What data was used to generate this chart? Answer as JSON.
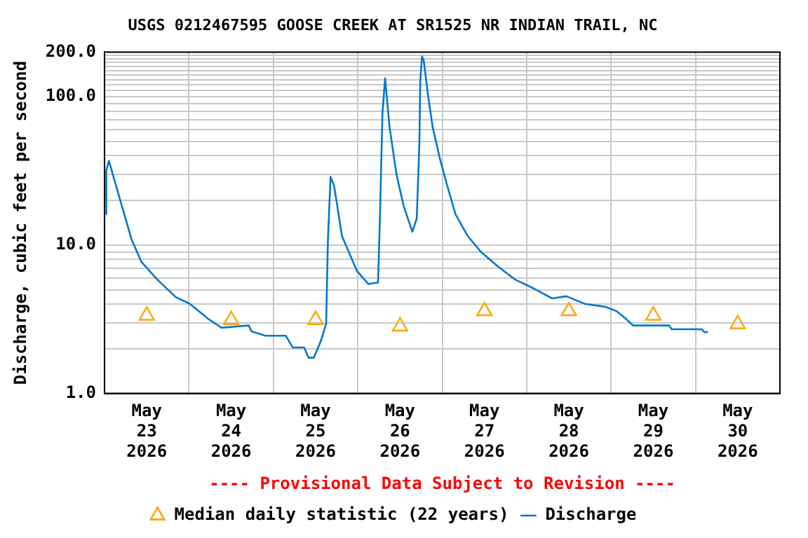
{
  "chart_data": {
    "type": "line",
    "title": "USGS 0212467595 GOOSE CREEK AT SR1525 NR INDIAN TRAIL, NC",
    "ylabel": "Discharge, cubic feet per second",
    "annotations": [
      "---- Provisional Data Subject to Revision ----"
    ],
    "log": true,
    "grid": true,
    "legend": "bottom",
    "xlim": [
      "2026-05-23T00:00",
      "2026-05-31T00:00"
    ],
    "xticks": [
      {
        "value": "2026-05-23T12:00",
        "label": "May\n23\n2026"
      },
      {
        "value": "2026-05-24T00:00",
        "label": null
      },
      {
        "value": "2026-05-24T12:00",
        "label": "May\n24\n2026"
      },
      {
        "value": "2026-05-25T00:00",
        "label": null
      },
      {
        "value": "2026-05-25T12:00",
        "label": "May\n25\n2026"
      },
      {
        "value": "2026-05-26T00:00",
        "label": null
      },
      {
        "value": "2026-05-26T12:00",
        "label": "May\n26\n2026"
      },
      {
        "value": "2026-05-27T00:00",
        "label": null
      },
      {
        "value": "2026-05-27T12:00",
        "label": "May\n27\n2026"
      },
      {
        "value": "2026-05-28T00:00",
        "label": null
      },
      {
        "value": "2026-05-28T12:00",
        "label": "May\n28\n2026"
      },
      {
        "value": "2026-05-29T00:00",
        "label": null
      },
      {
        "value": "2026-05-29T12:00",
        "label": "May\n29\n2026"
      },
      {
        "value": "2026-05-30T00:00",
        "label": null
      },
      {
        "value": "2026-05-30T12:00",
        "label": "May\n30\n2026"
      }
    ],
    "ylim": [
      1,
      200
    ],
    "yticks": [
      {
        "value": 1,
        "label": "1.0"
      },
      {
        "value": 2,
        "label": null
      },
      {
        "value": 3,
        "label": null
      },
      {
        "value": 4,
        "label": null
      },
      {
        "value": 5,
        "label": null
      },
      {
        "value": 6,
        "label": null
      },
      {
        "value": 7,
        "label": null
      },
      {
        "value": 8,
        "label": null
      },
      {
        "value": 9,
        "label": null
      },
      {
        "value": 10,
        "label": "10.0"
      },
      {
        "value": 20,
        "label": null
      },
      {
        "value": 30,
        "label": null
      },
      {
        "value": 40,
        "label": null
      },
      {
        "value": 50,
        "label": null
      },
      {
        "value": 60,
        "label": null
      },
      {
        "value": 70,
        "label": null
      },
      {
        "value": 80,
        "label": null
      },
      {
        "value": 90,
        "label": null
      },
      {
        "value": 100,
        "label": "100.0"
      },
      {
        "value": 110,
        "label": null
      },
      {
        "value": 120,
        "label": null
      },
      {
        "value": 130,
        "label": null
      },
      {
        "value": 140,
        "label": null
      },
      {
        "value": 150,
        "label": null
      },
      {
        "value": 160,
        "label": null
      },
      {
        "value": 170,
        "label": null
      },
      {
        "value": 180,
        "label": null
      },
      {
        "value": 190,
        "label": null
      },
      {
        "value": 200,
        "label": "200.0"
      }
    ],
    "series": [
      {
        "name": "Median daily statistic (22 years)",
        "type": "scatter",
        "marker": "triangle",
        "color": "#ffa500",
        "x": [
          "2026-05-23T12:00",
          "2026-05-24T12:00",
          "2026-05-25T12:00",
          "2026-05-26T12:00",
          "2026-05-27T12:00",
          "2026-05-28T12:00",
          "2026-05-29T12:00",
          "2026-05-30T12:00"
        ],
        "values": [
          3.35,
          3.13,
          3.13,
          2.83,
          3.59,
          3.59,
          3.35,
          2.93
        ]
      },
      {
        "name": "Discharge",
        "marker": "none",
        "line_style": "solid",
        "color": "#0077cc",
        "x": [
          "2026-05-23T00:15",
          "2026-05-23T00:30",
          "2026-05-23T01:15",
          "2026-05-23T04:30",
          "2026-05-23T07:45",
          "2026-05-23T10:30",
          "2026-05-23T15:00",
          "2026-05-23T20:15",
          "2026-05-24T00:15",
          "2026-05-24T05:30",
          "2026-05-24T09:15",
          "2026-05-24T17:00",
          "2026-05-24T17:45",
          "2026-05-24T21:45",
          "2026-05-25T03:30",
          "2026-05-25T05:30",
          "2026-05-25T08:45",
          "2026-05-25T10:00",
          "2026-05-25T11:30",
          "2026-05-25T13:30",
          "2026-05-25T15:00",
          "2026-05-25T15:30",
          "2026-05-25T16:15",
          "2026-05-25T17:15",
          "2026-05-25T19:30",
          "2026-05-25T23:45",
          "2026-05-26T03:00",
          "2026-05-26T05:45",
          "2026-05-26T06:15",
          "2026-05-26T07:00",
          "2026-05-26T07:45",
          "2026-05-26T09:00",
          "2026-05-26T11:00",
          "2026-05-26T13:00",
          "2026-05-26T15:30",
          "2026-05-26T16:45",
          "2026-05-26T17:30",
          "2026-05-26T17:45",
          "2026-05-26T18:15",
          "2026-05-26T18:45",
          "2026-05-26T20:00",
          "2026-05-26T21:15",
          "2026-05-26T23:15",
          "2026-05-27T01:15",
          "2026-05-27T03:45",
          "2026-05-27T07:15",
          "2026-05-27T11:00",
          "2026-05-27T15:45",
          "2026-05-27T20:45",
          "2026-05-28T02:00",
          "2026-05-28T07:15",
          "2026-05-28T11:15",
          "2026-05-28T16:30",
          "2026-05-28T22:15",
          "2026-05-29T01:30",
          "2026-05-29T04:15",
          "2026-05-29T06:15",
          "2026-05-29T16:30",
          "2026-05-29T17:15",
          "2026-05-30T01:45",
          "2026-05-30T02:30",
          "2026-05-30T03:30"
        ],
        "values": [
          16.2,
          31.9,
          37,
          19.9,
          10.8,
          7.7,
          5.85,
          4.46,
          4.02,
          3.18,
          2.77,
          2.87,
          2.62,
          2.45,
          2.45,
          2.04,
          2.04,
          1.74,
          1.74,
          2.26,
          2.96,
          10.8,
          28.8,
          25.2,
          11.5,
          6.7,
          5.46,
          5.6,
          14.1,
          77,
          133,
          63,
          29.9,
          18.5,
          12.3,
          15.1,
          48,
          128,
          187,
          175,
          101,
          63,
          39,
          26,
          16.2,
          11.5,
          9.0,
          7.2,
          5.85,
          5.1,
          4.37,
          4.52,
          4.02,
          3.84,
          3.59,
          3.18,
          2.87,
          2.87,
          2.71,
          2.71,
          2.59,
          2.59
        ]
      }
    ]
  }
}
